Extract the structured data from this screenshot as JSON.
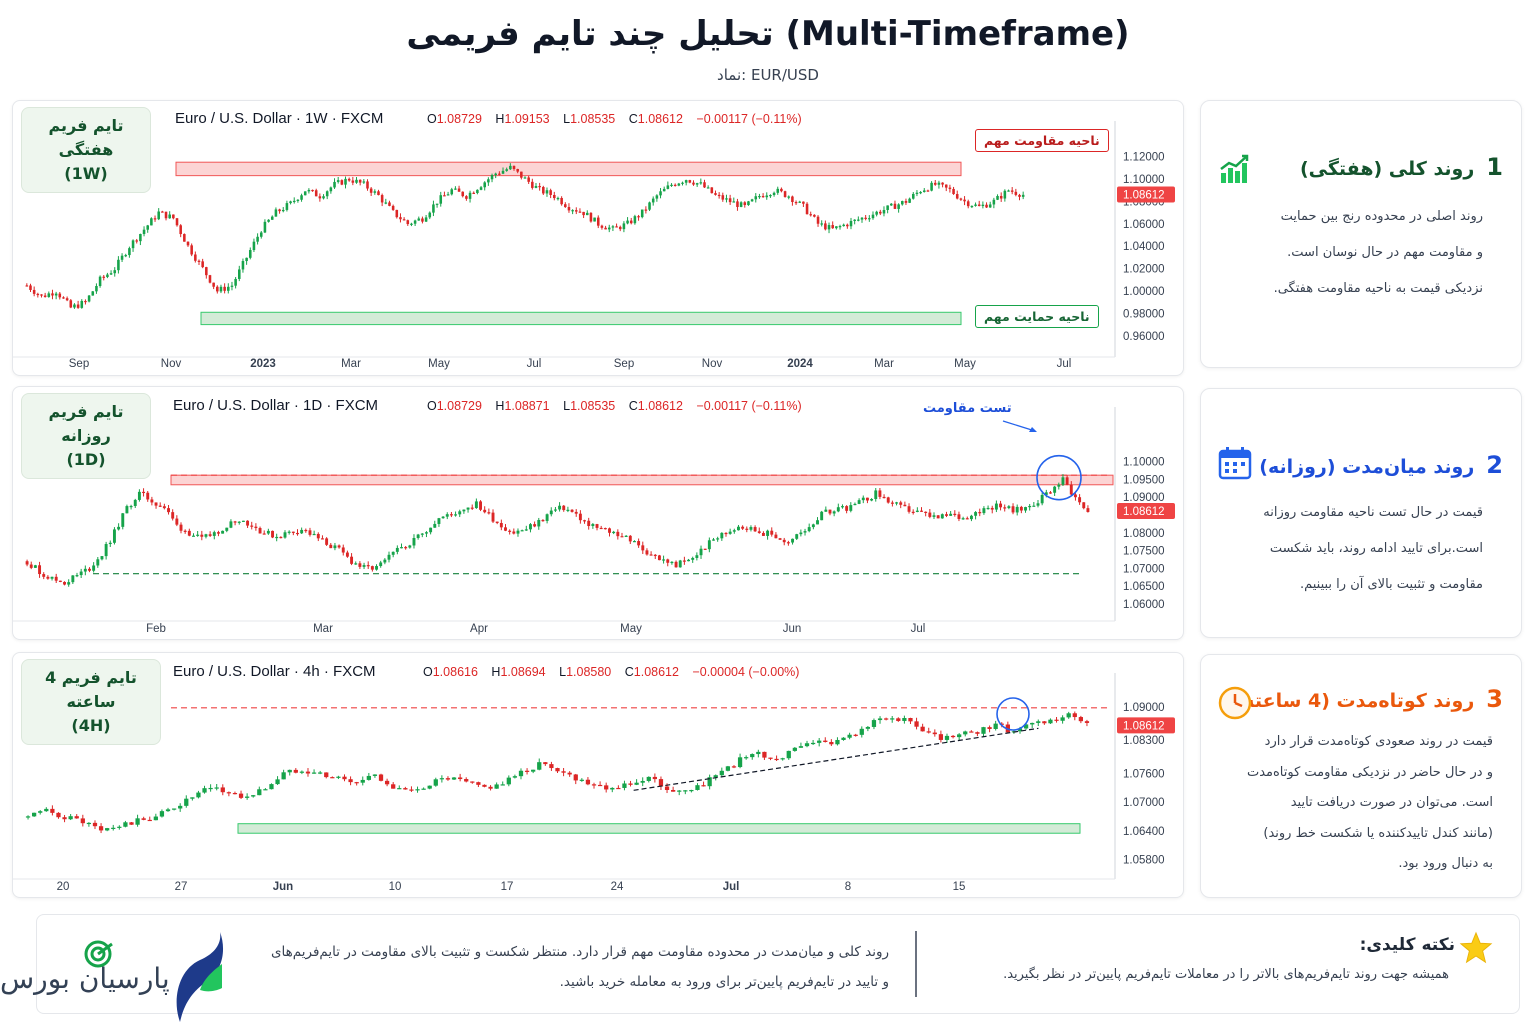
{
  "title": "تحلیل چند تایم فریمی (Multi-Timeframe)",
  "subtitle": "نماد: EUR/USD",
  "colors": {
    "up": "#16a34a",
    "down": "#dc2626",
    "resistance_fill": "#fcd0d0",
    "support_fill": "#cfe9d3",
    "accent_blue": "#1d4ed8",
    "accent_orange": "#ea580c"
  },
  "panels": [
    {
      "badge_line1": "تایم فریم هفتگی",
      "badge_line2": "(1W)",
      "header": "Euro / U.S. Dollar · 1W · FXCM",
      "ohlc": {
        "o_label": "O",
        "o": "1.08729",
        "h_label": "H",
        "h": "1.09153",
        "l_label": "L",
        "l": "1.08535",
        "c_label": "C",
        "c": "1.08612",
        "chg": "−0.00117 (−0.11%)"
      },
      "resistance_label": "ناحیه مقاومت مهم",
      "support_label": "ناحیه حمایت مهم",
      "last_price": "1.08612",
      "chart_data": {
        "type": "candlestick",
        "ylim": [
          0.95,
          1.125
        ],
        "y_ticks": [
          "1.12000",
          "1.10000",
          "1.08000",
          "1.06000",
          "1.04000",
          "1.02000",
          "1.00000",
          "0.98000",
          "0.96000"
        ],
        "y_tick_values": [
          1.12,
          1.1,
          1.08,
          1.06,
          1.04,
          1.02,
          1.0,
          0.98,
          0.96
        ],
        "x_ticks": [
          "Sep",
          "Nov",
          "2023",
          "Mar",
          "May",
          "Jul",
          "Sep",
          "Nov",
          "2024",
          "Mar",
          "May",
          "Jul"
        ],
        "resistance_zone": [
          1.103,
          1.115
        ],
        "support_zone": [
          0.97,
          0.981
        ],
        "last_price": 1.08612,
        "close_path": [
          1.005,
          0.995,
          1.0,
          0.985,
          0.99,
          1.01,
          1.02,
          1.04,
          1.055,
          1.07,
          1.065,
          1.04,
          1.02,
          1.0,
          1.005,
          1.03,
          1.055,
          1.07,
          1.078,
          1.09,
          1.085,
          1.095,
          1.1,
          1.095,
          1.085,
          1.07,
          1.06,
          1.065,
          1.08,
          1.09,
          1.085,
          1.095,
          1.105,
          1.11,
          1.1,
          1.09,
          1.085,
          1.075,
          1.07,
          1.06,
          1.055,
          1.06,
          1.07,
          1.085,
          1.095,
          1.1,
          1.095,
          1.085,
          1.08,
          1.075,
          1.085,
          1.09,
          1.085,
          1.075,
          1.06,
          1.055,
          1.06,
          1.065,
          1.07,
          1.075,
          1.08,
          1.09,
          1.095,
          1.09,
          1.08,
          1.075,
          1.08,
          1.09,
          1.086
        ]
      }
    },
    {
      "badge_line1": "تایم فریم روزانه",
      "badge_line2": "(1D)",
      "header": "Euro / U.S. Dollar · 1D · FXCM",
      "ohlc": {
        "o_label": "O",
        "o": "1.08729",
        "h_label": "H",
        "h": "1.08871",
        "l_label": "L",
        "l": "1.08535",
        "c_label": "C",
        "c": "1.08612",
        "chg": "−0.00117 (−0.11%)"
      },
      "annotation": "تست مقاومت",
      "last_price": "1.08612",
      "chart_data": {
        "type": "candlestick",
        "ylim": [
          1.058,
          1.112
        ],
        "y_ticks": [
          "1.10000",
          "1.09500",
          "1.09000",
          "1.08500",
          "1.08000",
          "1.07500",
          "1.07000",
          "1.06500",
          "1.06000"
        ],
        "y_tick_values": [
          1.1,
          1.095,
          1.09,
          1.085,
          1.08,
          1.075,
          1.07,
          1.065,
          1.06
        ],
        "x_ticks": [
          "Feb",
          "Mar",
          "Apr",
          "May",
          "Jun",
          "Jul"
        ],
        "resistance_zone": [
          1.0935,
          1.0962
        ],
        "resistance_line": 1.0962,
        "support_line": 1.0685,
        "last_price": 1.08612,
        "close_path": [
          1.072,
          1.069,
          1.067,
          1.066,
          1.068,
          1.07,
          1.074,
          1.08,
          1.087,
          1.091,
          1.089,
          1.087,
          1.082,
          1.08,
          1.078,
          1.08,
          1.082,
          1.084,
          1.082,
          1.08,
          1.079,
          1.08,
          1.081,
          1.079,
          1.077,
          1.075,
          1.072,
          1.07,
          1.07,
          1.073,
          1.076,
          1.078,
          1.081,
          1.084,
          1.085,
          1.087,
          1.088,
          1.085,
          1.082,
          1.08,
          1.081,
          1.083,
          1.086,
          1.087,
          1.085,
          1.082,
          1.081,
          1.08,
          1.079,
          1.076,
          1.074,
          1.072,
          1.071,
          1.072,
          1.075,
          1.078,
          1.08,
          1.082,
          1.081,
          1.08,
          1.079,
          1.077,
          1.08,
          1.083,
          1.086,
          1.087,
          1.087,
          1.089,
          1.091,
          1.089,
          1.087,
          1.086,
          1.085,
          1.084,
          1.085,
          1.084,
          1.086,
          1.087,
          1.088,
          1.086,
          1.087,
          1.089,
          1.092,
          1.095,
          1.09,
          1.086
        ]
      }
    },
    {
      "badge_line1": "تایم فریم 4 ساعته",
      "badge_line2": "(4H)",
      "header": "Euro / U.S. Dollar · 4h · FXCM",
      "ohlc": {
        "o_label": "O",
        "o": "1.08616",
        "h_label": "H",
        "h": "1.08694",
        "l_label": "L",
        "l": "1.08580",
        "c_label": "C",
        "c": "1.08612",
        "chg": "−0.00004 (−0.00%)"
      },
      "last_price": "1.08612",
      "chart_data": {
        "type": "candlestick",
        "ylim": [
          1.056,
          1.095
        ],
        "y_ticks": [
          "1.09000",
          "1.08300",
          "1.07600",
          "1.07000",
          "1.06400",
          "1.05800"
        ],
        "y_tick_values": [
          1.09,
          1.083,
          1.076,
          1.07,
          1.064,
          1.058
        ],
        "x_ticks": [
          "20",
          "27",
          "Jun",
          "10",
          "17",
          "24",
          "Jul",
          "8",
          "15"
        ],
        "resistance_line": 1.0898,
        "support_zone": [
          1.0635,
          1.0655
        ],
        "trendline": [
          [
            0.56,
            1.0725
          ],
          [
            0.93,
            1.0855
          ]
        ],
        "last_price": 1.08612,
        "close_path": [
          1.067,
          1.068,
          1.067,
          1.066,
          1.064,
          1.065,
          1.066,
          1.067,
          1.069,
          1.071,
          1.073,
          1.072,
          1.071,
          1.073,
          1.076,
          1.077,
          1.076,
          1.075,
          1.074,
          1.076,
          1.073,
          1.072,
          1.074,
          1.075,
          1.074,
          1.073,
          1.074,
          1.076,
          1.078,
          1.077,
          1.075,
          1.074,
          1.073,
          1.074,
          1.075,
          1.073,
          1.072,
          1.074,
          1.076,
          1.079,
          1.08,
          1.079,
          1.081,
          1.083,
          1.082,
          1.084,
          1.086,
          1.088,
          1.087,
          1.085,
          1.083,
          1.084,
          1.085,
          1.086,
          1.085,
          1.086,
          1.087,
          1.088,
          1.086
        ]
      }
    }
  ],
  "side_cards": [
    {
      "num": "1",
      "title": "روند کلی (هفتگی)",
      "icon": "bar-chart-icon",
      "lines": [
        "روند اصلی در محدوده رنج بین حمایت",
        "و مقاومت مهم در حال نوسان است.",
        "نزدیکی قیمت به ناحیه مقاومت هفتگی."
      ]
    },
    {
      "num": "2",
      "title": "روند میان‌مدت (روزانه)",
      "icon": "calendar-icon",
      "lines": [
        "قیمت در حال تست ناحیه مقاومت روزانه",
        "است.برای تایید ادامه روند، باید شکست",
        "مقاومت و تثبیت بالای آن را ببینیم."
      ]
    },
    {
      "num": "3",
      "title": "روند کوتاه‌مدت (4 ساعته)",
      "icon": "clock-icon",
      "lines": [
        "قیمت در روند صعودی کوتاه‌مدت قرار دارد",
        "و در حال حاضر در نزدیکی مقاومت کوتاه‌مدت",
        "است. می‌توان در صورت دریافت تایید",
        "(مانند کندل تاییدکننده یا شکست خط روند)",
        "به دنبال ورود بود."
      ]
    }
  ],
  "footer": {
    "key_title": "نکته کلیدی:",
    "key_text": "همیشه جهت روند تایم‌فریم‌های بالاتر را در معاملات تایم‌فریم پایین‌تر در نظر بگیرید.",
    "mid_line1": "روند کلی و میان‌مدت در محدوده مقاومت مهم قرار دارد. منتظر شکست و تثبیت بالای مقاومت در تایم‌فریم‌های",
    "mid_line2": "و تایید در تایم‌فریم پایین‌تر  برای ورود به معامله خرید باشید.",
    "logo_text": "پارسیان بورس"
  }
}
